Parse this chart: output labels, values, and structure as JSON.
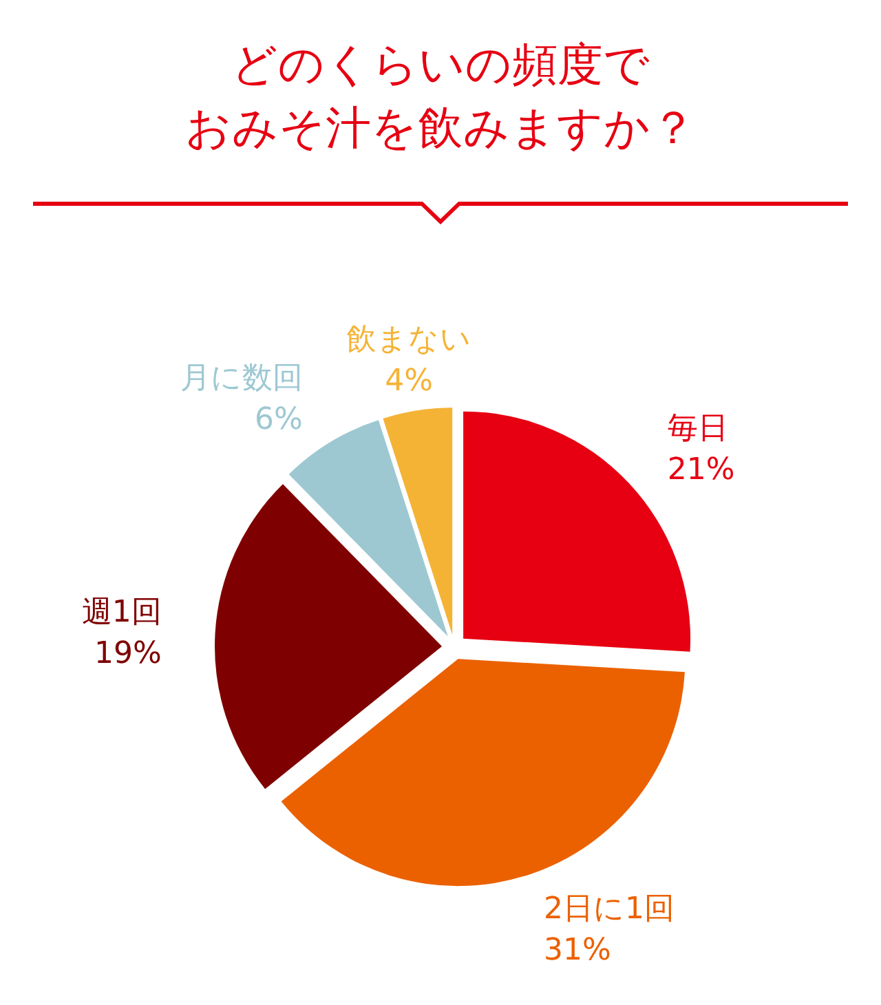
{
  "chart_data": {
    "type": "pie",
    "title": "どのくらいの頻度でおみそ汁を飲みますか？",
    "categories": [
      "毎日",
      "2日に1回",
      "週1回",
      "月に数回",
      "飲まない"
    ],
    "values": [
      21,
      31,
      19,
      6,
      4
    ],
    "colors": [
      "#e60012",
      "#eb6100",
      "#7f0000",
      "#9dc8d2",
      "#f5b335"
    ],
    "value_labels": [
      "21%",
      "31%",
      "19%",
      "6%",
      "4%"
    ],
    "legend": false
  }
}
